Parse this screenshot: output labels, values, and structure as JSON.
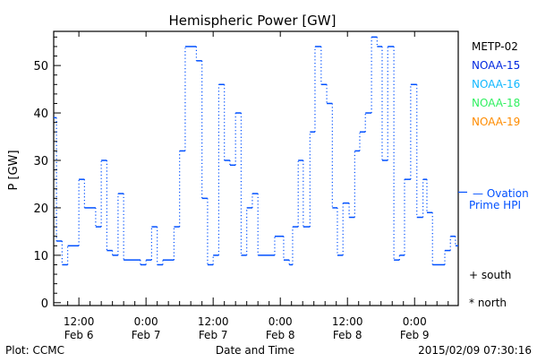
{
  "chart_data": {
    "type": "line",
    "title": "Hemispheric Power [GW]",
    "xlabel": "Date and Time",
    "ylabel": "P [GW]",
    "ylim": [
      -0.6,
      57.2
    ],
    "xlim_hours_since_feb6_0000": [
      7.5,
      79.8
    ],
    "y_ticks": [
      0,
      10,
      20,
      30,
      40,
      50
    ],
    "y_tick_labels": [
      "0",
      "10",
      "20",
      "30",
      "40",
      "50"
    ],
    "x_ticks": [
      {
        "hour": 12,
        "time": "12:00",
        "date": "Feb 6"
      },
      {
        "hour": 24,
        "time": "0:00",
        "date": "Feb 7"
      },
      {
        "hour": 36,
        "time": "12:00",
        "date": "Feb 7"
      },
      {
        "hour": 48,
        "time": "0:00",
        "date": "Feb 8"
      },
      {
        "hour": 60,
        "time": "12:00",
        "date": "Feb 8"
      },
      {
        "hour": 72,
        "time": "0:00",
        "date": "Feb 9"
      }
    ],
    "legend": [
      {
        "label": "METP-02",
        "color": "#000000"
      },
      {
        "label": "NOAA-15",
        "color": "#0028e0"
      },
      {
        "label": "NOAA-16",
        "color": "#10b8ff"
      },
      {
        "label": "NOAA-18",
        "color": "#30f060"
      },
      {
        "label": "NOAA-19",
        "color": "#ff8c00"
      }
    ],
    "legend_position": "right",
    "series": [
      {
        "name": "NOAA-15 (south)",
        "color": "#0050ff",
        "style": "step",
        "steps": [
          [
            7.5,
            39
          ],
          [
            8,
            13
          ],
          [
            9,
            8
          ],
          [
            10,
            12
          ],
          [
            12,
            26
          ],
          [
            13,
            20
          ],
          [
            15,
            16
          ],
          [
            16,
            30
          ],
          [
            17,
            11
          ],
          [
            18,
            10
          ],
          [
            19,
            23
          ],
          [
            20,
            9
          ],
          [
            23,
            8
          ],
          [
            24,
            9
          ],
          [
            25,
            16
          ],
          [
            26,
            8
          ],
          [
            27,
            9
          ],
          [
            29,
            16
          ],
          [
            30,
            32
          ],
          [
            31,
            54
          ],
          [
            33,
            51
          ],
          [
            34,
            22
          ],
          [
            35,
            8
          ],
          [
            36,
            10
          ],
          [
            37,
            46
          ],
          [
            38,
            30
          ],
          [
            39,
            29
          ],
          [
            40,
            40
          ],
          [
            41,
            10
          ],
          [
            42,
            20
          ],
          [
            43,
            23
          ],
          [
            44,
            10
          ],
          [
            47,
            14
          ],
          [
            48.6,
            9
          ],
          [
            49.6,
            8
          ],
          [
            50.2,
            16
          ],
          [
            51.2,
            30
          ],
          [
            52.1,
            16
          ],
          [
            53.3,
            36
          ],
          [
            54.2,
            54
          ],
          [
            55.3,
            46
          ],
          [
            56.3,
            42
          ],
          [
            57.3,
            20
          ],
          [
            58.2,
            10
          ],
          [
            59.2,
            21
          ],
          [
            60.3,
            18
          ],
          [
            61.3,
            32
          ],
          [
            62.2,
            36
          ],
          [
            63.2,
            40
          ],
          [
            64.3,
            56
          ],
          [
            65.3,
            54
          ],
          [
            66.2,
            30
          ],
          [
            67.2,
            54
          ],
          [
            68.3,
            9
          ],
          [
            69.3,
            10
          ],
          [
            70.2,
            26
          ],
          [
            71.3,
            46
          ],
          [
            72.4,
            18
          ],
          [
            73.5,
            26
          ],
          [
            74.2,
            19
          ],
          [
            75.2,
            8
          ],
          [
            77.4,
            11
          ],
          [
            78.4,
            14
          ],
          [
            79.3,
            12
          ]
        ],
        "end_hour": 79.8
      }
    ],
    "ovation": {
      "label_line1": "— Ovation",
      "label_line2": "Prime HPI",
      "value": 23.3,
      "color": "#0050ff"
    },
    "markers_legend": {
      "south": "+ south",
      "north": "* north"
    },
    "footer": {
      "left": "Plot: CCMC",
      "right": "2015/02/09 07:30:16"
    }
  }
}
